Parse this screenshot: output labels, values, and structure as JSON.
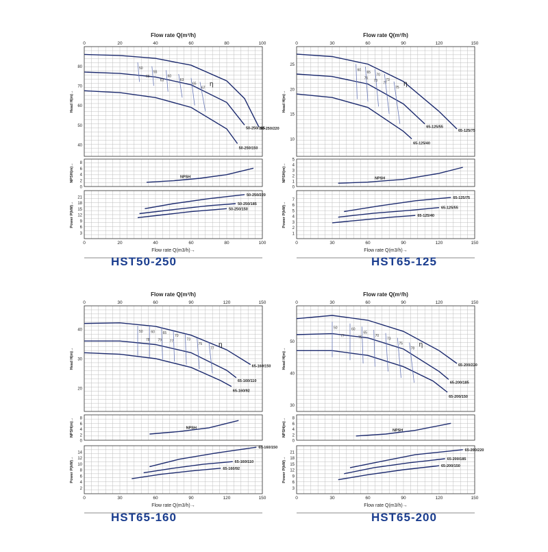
{
  "colors": {
    "curve": "#1c2a6e",
    "eff": "#6878b8",
    "grid": "#bdbdbd",
    "axis": "#333333",
    "caption": "#1a3d8f"
  },
  "chart_data": [
    {
      "type": "line",
      "caption": "HST50-250",
      "top_axis_title": "Flow rate Q(m³/h)",
      "bottom_axis_title": "Flow rate Q(m3/h)→",
      "x_ticks": [
        "0",
        "20",
        "40",
        "60",
        "80",
        "100"
      ],
      "xlim": [
        0,
        100
      ],
      "eff_symbol": "η",
      "npsh_label": "NPSH",
      "head": {
        "ylabel": "Head H(m)→",
        "ylim": [
          34,
          90
        ],
        "y_ticks": [
          "40",
          "50",
          "60",
          "70",
          "80"
        ],
        "series": [
          {
            "name": "50-250/220",
            "x": [
              0,
              20,
              40,
              60,
              80,
              90,
              98
            ],
            "y": [
              86,
              85.5,
              84,
              80.5,
              72.5,
              63.5,
              49
            ]
          },
          {
            "name": "50-250/185",
            "x": [
              0,
              20,
              40,
              60,
              80,
              90
            ],
            "y": [
              77,
              76.3,
              74.5,
              70.5,
              61.5,
              50
            ]
          },
          {
            "name": "50-250/150",
            "x": [
              0,
              20,
              40,
              60,
              80,
              86
            ],
            "y": [
              67.5,
              66.5,
              64,
              59,
              48,
              40.5
            ]
          }
        ],
        "efficiency": {
          "labels": [
            "50",
            "55",
            "60",
            "63",
            "65",
            "67",
            "65",
            "63"
          ],
          "isolines": [
            [
              [
                30,
                82
              ],
              [
                31,
                72
              ]
            ],
            [
              [
                38,
                80
              ],
              [
                39,
                70
              ]
            ],
            [
              [
                46,
                78
              ],
              [
                47,
                67
              ]
            ],
            [
              [
                53,
                76
              ],
              [
                55,
                64
              ]
            ],
            [
              [
                60,
                74
              ],
              [
                62,
                60
              ]
            ],
            [
              [
                65,
                72
              ],
              [
                68,
                57
              ]
            ]
          ]
        }
      },
      "npsh": {
        "ylabel": "NPSH(m)→",
        "ylim": [
          0,
          9
        ],
        "y_ticks": [
          "0",
          "2",
          "4",
          "6",
          "8"
        ],
        "series": [
          {
            "name": "NPSH",
            "x": [
              35,
              50,
              65,
              80,
              95
            ],
            "y": [
              1.4,
              1.9,
              2.7,
              3.9,
              6
            ]
          }
        ]
      },
      "power": {
        "ylabel": "Power P(kW)→",
        "ylim": [
          0,
          24
        ],
        "y_ticks": [
          "3",
          "6",
          "9",
          "12",
          "15",
          "18",
          "21"
        ],
        "series": [
          {
            "name": "50-250/220",
            "x": [
              34,
              50,
              70,
              90
            ],
            "y": [
              15,
              17.5,
              20,
              22
            ]
          },
          {
            "name": "50-250/185",
            "x": [
              31,
              50,
              70,
              85
            ],
            "y": [
              12.5,
              14.5,
              16.5,
              17.5
            ]
          },
          {
            "name": "50-250/150",
            "x": [
              30,
              45,
              60,
              80
            ],
            "y": [
              10.5,
              12,
              13.5,
              15
            ]
          }
        ]
      }
    },
    {
      "type": "line",
      "caption": "HST65-125",
      "top_axis_title": "Flow rate Q(m³/h)",
      "bottom_axis_title": "Flow rate Q(m3/h)→",
      "x_ticks": [
        "0",
        "30",
        "60",
        "90",
        "120",
        "150"
      ],
      "xlim": [
        0,
        150
      ],
      "eff_symbol": "η",
      "npsh_label": "NPSH",
      "head": {
        "ylabel": "Head H(m)→",
        "ylim": [
          6.5,
          28.5
        ],
        "y_ticks": [
          "10",
          "15",
          "20",
          "25"
        ],
        "series": [
          {
            "name": "65-125/75",
            "x": [
              0,
              30,
              60,
              90,
              120,
              135
            ],
            "y": [
              27,
              26.5,
              25,
              21.5,
              15.5,
              12
            ]
          },
          {
            "name": "65-125/55",
            "x": [
              0,
              30,
              60,
              90,
              108
            ],
            "y": [
              23,
              22.5,
              21,
              17,
              13
            ]
          },
          {
            "name": "65-125/40",
            "x": [
              0,
              30,
              60,
              90,
              97
            ],
            "y": [
              19,
              18.3,
              16.3,
              11.5,
              10
            ]
          }
        ],
        "efficiency": {
          "labels": [
            "60",
            "65",
            "70",
            "73",
            "75",
            "76",
            "73",
            "77"
          ],
          "isolines": [
            [
              [
                50,
                25
              ],
              [
                51,
                18
              ]
            ],
            [
              [
                58,
                24.5
              ],
              [
                60,
                17.5
              ]
            ],
            [
              [
                66,
                24
              ],
              [
                69,
                16.5
              ]
            ],
            [
              [
                74,
                23
              ],
              [
                78,
                15
              ]
            ],
            [
              [
                82,
                21.5
              ],
              [
                87,
                13
              ]
            ]
          ]
        }
      },
      "npsh": {
        "ylabel": "NPSH(m)→",
        "ylim": [
          0,
          5
        ],
        "y_ticks": [
          "0",
          "1",
          "2",
          "3",
          "4",
          "5"
        ],
        "series": [
          {
            "name": "NPSH",
            "x": [
              35,
              60,
              90,
              120,
              140
            ],
            "y": [
              0.6,
              0.8,
              1.3,
              2.4,
              3.5
            ]
          }
        ]
      },
      "power": {
        "ylabel": "Power P(kW)→",
        "ylim": [
          0,
          8.5
        ],
        "y_ticks": [
          "1",
          "2",
          "3",
          "4",
          "5",
          "6",
          "7"
        ],
        "series": [
          {
            "name": "65-125/75",
            "x": [
              40,
              70,
              100,
              130
            ],
            "y": [
              4.8,
              5.8,
              6.7,
              7.3
            ]
          },
          {
            "name": "65-125/55",
            "x": [
              35,
              65,
              95,
              120
            ],
            "y": [
              3.8,
              4.5,
              5,
              5.5
            ]
          },
          {
            "name": "65-125/40",
            "x": [
              30,
              55,
              80,
              100
            ],
            "y": [
              2.8,
              3.3,
              3.8,
              4.1
            ]
          }
        ]
      }
    },
    {
      "type": "line",
      "caption": "HST65-160",
      "top_axis_title": "Flow rate Q(m³/h)",
      "bottom_axis_title": "Flow rate Q(m3/h)→",
      "x_ticks": [
        "0",
        "30",
        "60",
        "90",
        "120",
        "150"
      ],
      "xlim": [
        0,
        150
      ],
      "eff_symbol": "η",
      "npsh_label": "NPSH",
      "head": {
        "ylabel": "Head H(m)→",
        "ylim": [
          12,
          48
        ],
        "y_ticks": [
          "20",
          "30",
          "40"
        ],
        "series": [
          {
            "name": "65-160/150",
            "x": [
              0,
              30,
              60,
              90,
              120,
              140
            ],
            "y": [
              42,
              42.2,
              41,
              38,
              33,
              28
            ]
          },
          {
            "name": "65-160/110",
            "x": [
              0,
              30,
              60,
              90,
              120,
              128
            ],
            "y": [
              36,
              36,
              34.8,
              32,
              26,
              23.5
            ]
          },
          {
            "name": "65-160/92",
            "x": [
              0,
              30,
              60,
              90,
              115,
              124
            ],
            "y": [
              32,
              31.5,
              30,
              27,
              22.5,
              20.5
            ]
          }
        ],
        "efficiency": {
          "labels": [
            "50",
            "60",
            "65",
            "70",
            "73",
            "75",
            "77",
            "78",
            "79",
            "77"
          ],
          "isolines": [
            [
              [
                45,
                41.2
              ],
              [
                45,
                31
              ]
            ],
            [
              [
                55,
                41.1
              ],
              [
                55,
                30.5
              ]
            ],
            [
              [
                65,
                40.8
              ],
              [
                66,
                29.8
              ]
            ],
            [
              [
                75,
                39.8
              ],
              [
                76,
                29
              ]
            ],
            [
              [
                85,
                38.5
              ],
              [
                86,
                28
              ]
            ],
            [
              [
                95,
                37
              ],
              [
                97,
                26.5
              ]
            ],
            [
              [
                105,
                35.5
              ],
              [
                108,
                25
              ]
            ]
          ]
        }
      },
      "npsh": {
        "ylabel": "NPSH(m)→",
        "ylim": [
          0,
          9
        ],
        "y_ticks": [
          "0",
          "2",
          "4",
          "6",
          "8"
        ],
        "series": [
          {
            "name": "NPSH",
            "x": [
              55,
              80,
              105,
              130
            ],
            "y": [
              2.2,
              3.1,
              4.4,
              7
            ]
          }
        ]
      },
      "power": {
        "ylabel": "Power P(kW)→",
        "ylim": [
          0,
          16
        ],
        "y_ticks": [
          "2",
          "4",
          "6",
          "8",
          "10",
          "12",
          "14"
        ],
        "series": [
          {
            "name": "65-160/150",
            "x": [
              55,
              80,
              110,
              145
            ],
            "y": [
              9,
              11.5,
              13.5,
              15.5
            ]
          },
          {
            "name": "65-160/110",
            "x": [
              50,
              75,
              100,
              125
            ],
            "y": [
              7,
              8.5,
              9.8,
              10.7
            ]
          },
          {
            "name": "65-160/92",
            "x": [
              40,
              65,
              90,
              115
            ],
            "y": [
              5,
              6.5,
              7.6,
              8.5
            ]
          }
        ]
      }
    },
    {
      "type": "line",
      "caption": "HST65-200",
      "top_axis_title": "Flow rate Q(m³/h)",
      "bottom_axis_title": "Flow rate Q(m3/h)→",
      "x_ticks": [
        "0",
        "30",
        "60",
        "90",
        "120",
        "150"
      ],
      "xlim": [
        0,
        150
      ],
      "eff_symbol": "η",
      "npsh_label": "NPSH",
      "head": {
        "ylabel": "Head H(m)→",
        "ylim": [
          28,
          61
        ],
        "y_ticks": [
          "30",
          "40",
          "50"
        ],
        "series": [
          {
            "name": "65-200/220",
            "x": [
              0,
              30,
              60,
              90,
              120,
              135
            ],
            "y": [
              57,
              58,
              56.5,
              53,
              47,
              43
            ]
          },
          {
            "name": "65-200/185",
            "x": [
              0,
              30,
              60,
              90,
              120,
              128
            ],
            "y": [
              52,
              52.3,
              51,
              47.5,
              40.5,
              38
            ]
          },
          {
            "name": "65-200/150",
            "x": [
              0,
              30,
              60,
              90,
              115,
              127
            ],
            "y": [
              47,
              47,
              45.5,
              42,
              37.5,
              34
            ]
          }
        ],
        "efficiency": {
          "labels": [
            "50",
            "60",
            "65",
            "70",
            "73",
            "75",
            "78",
            "77",
            "75"
          ],
          "isolines": [
            [
              [
                30,
                56
              ],
              [
                30,
                45
              ]
            ],
            [
              [
                45,
                55.5
              ],
              [
                45,
                44
              ]
            ],
            [
              [
                55,
                54.5
              ],
              [
                56,
                43
              ]
            ],
            [
              [
                65,
                53.5
              ],
              [
                66,
                42
              ]
            ],
            [
              [
                75,
                52.5
              ],
              [
                77,
                40.5
              ]
            ],
            [
              [
                85,
                51
              ],
              [
                88,
                38.5
              ]
            ],
            [
              [
                95,
                49.5
              ],
              [
                99,
                37
              ]
            ]
          ]
        }
      },
      "npsh": {
        "ylabel": "NPSH(m)→",
        "ylim": [
          0,
          9
        ],
        "y_ticks": [
          "0",
          "2",
          "4",
          "6",
          "8"
        ],
        "series": [
          {
            "name": "NPSH",
            "x": [
              50,
              75,
              100,
              130
            ],
            "y": [
              1.5,
              2.2,
              3.5,
              6
            ]
          }
        ]
      },
      "power": {
        "ylabel": "Power P(kW)→",
        "ylim": [
          0,
          24
        ],
        "y_ticks": [
          "3",
          "6",
          "9",
          "12",
          "15",
          "18",
          "21"
        ],
        "series": [
          {
            "name": "65-200/220",
            "x": [
              45,
              70,
              100,
              140
            ],
            "y": [
              13,
              16,
              19.5,
              22
            ]
          },
          {
            "name": "65-200/185",
            "x": [
              40,
              65,
              95,
              125
            ],
            "y": [
              10,
              13,
              15.5,
              17.5
            ]
          },
          {
            "name": "65-200/150",
            "x": [
              35,
              60,
              90,
              120
            ],
            "y": [
              7,
              9.5,
              12,
              14
            ]
          }
        ]
      }
    }
  ]
}
